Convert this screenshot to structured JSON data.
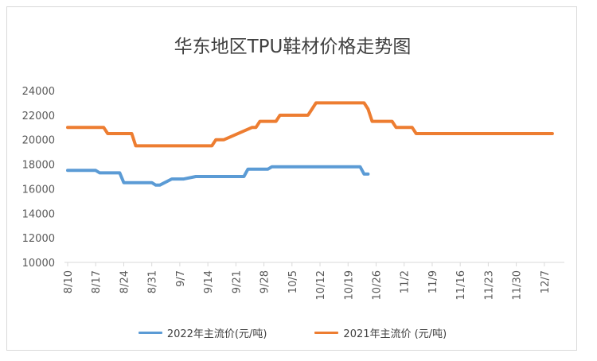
{
  "chart_data": {
    "type": "line",
    "title": "华东地区TPU鞋材价格走势图",
    "xlabel": "",
    "ylabel": "",
    "ylim": [
      10000,
      24000
    ],
    "yticks": [
      10000,
      12000,
      14000,
      16000,
      18000,
      20000,
      22000,
      24000
    ],
    "xticks": [
      "8/10",
      "8/17",
      "8/24",
      "8/31",
      "9/7",
      "9/14",
      "9/21",
      "9/28",
      "10/5",
      "10/12",
      "10/19",
      "10/26",
      "11/2",
      "11/9",
      "11/16",
      "11/23",
      "11/30",
      "12/7"
    ],
    "grid": false,
    "legend_position": "bottom",
    "series": [
      {
        "name": "2022年主流价(元/吨)",
        "color": "#5b9bd5",
        "x": [
          0,
          7,
          8,
          12,
          13,
          14,
          21,
          22,
          23,
          26,
          29,
          32,
          34,
          44,
          45,
          50,
          51,
          52,
          53,
          73,
          74,
          75
        ],
        "values": [
          17500,
          17500,
          17300,
          17300,
          17300,
          16500,
          16500,
          16300,
          16300,
          16800,
          16800,
          17000,
          17000,
          17000,
          17600,
          17600,
          17800,
          17800,
          17800,
          17800,
          17200,
          17200
        ]
      },
      {
        "name": "2021年主流价 (元/吨)",
        "color": "#ed7d31",
        "x": [
          0,
          9,
          10,
          16,
          17,
          36,
          37,
          39,
          46,
          47,
          48,
          52,
          53,
          59,
          60,
          61,
          62,
          74,
          75,
          76,
          81,
          82,
          86,
          87,
          88,
          121
        ],
        "values": [
          21000,
          21000,
          20500,
          20500,
          19500,
          19500,
          20000,
          20000,
          21000,
          21000,
          21500,
          21500,
          22000,
          22000,
          22000,
          22500,
          23000,
          23000,
          22500,
          21500,
          21500,
          21000,
          21000,
          20500,
          20500,
          20500
        ]
      }
    ]
  }
}
